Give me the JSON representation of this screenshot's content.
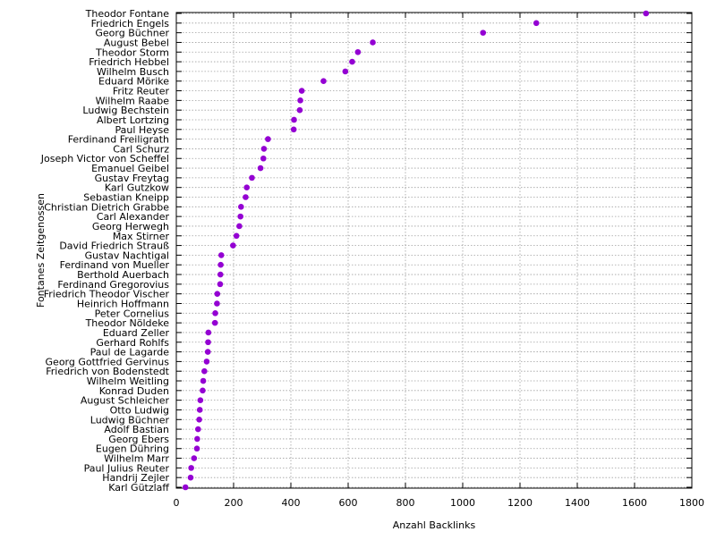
{
  "chart_data": {
    "type": "scatter",
    "title": "",
    "xlabel": "Anzahl Backlinks",
    "ylabel": "Fontanes Zeitgenossen",
    "xlim": [
      0,
      1800
    ],
    "x_ticks": [
      0,
      200,
      400,
      600,
      800,
      1000,
      1200,
      1400,
      1600,
      1800
    ],
    "grid": true,
    "legend": "none",
    "marker_color": "#9400d3",
    "points": [
      {
        "label": "Theodor Fontane",
        "x": 1640
      },
      {
        "label": "Friedrich Engels",
        "x": 1257
      },
      {
        "label": "Georg Büchner",
        "x": 1071
      },
      {
        "label": "August Bebel",
        "x": 686
      },
      {
        "label": "Theodor Storm",
        "x": 634
      },
      {
        "label": "Friedrich Hebbel",
        "x": 614
      },
      {
        "label": "Wilhelm Busch",
        "x": 590
      },
      {
        "label": "Eduard Mörike",
        "x": 514
      },
      {
        "label": "Fritz Reuter",
        "x": 438
      },
      {
        "label": "Wilhelm Raabe",
        "x": 433
      },
      {
        "label": "Ludwig Bechstein",
        "x": 431
      },
      {
        "label": "Albert Lortzing",
        "x": 411
      },
      {
        "label": "Paul Heyse",
        "x": 410
      },
      {
        "label": "Ferdinand Freiligrath",
        "x": 320
      },
      {
        "label": "Carl Schurz",
        "x": 306
      },
      {
        "label": "Joseph Victor von Scheffel",
        "x": 304
      },
      {
        "label": "Emanuel Geibel",
        "x": 294
      },
      {
        "label": "Gustav Freytag",
        "x": 264
      },
      {
        "label": "Karl Gutzkow",
        "x": 246
      },
      {
        "label": "Sebastian Kneipp",
        "x": 242
      },
      {
        "label": "Christian Dietrich Grabbe",
        "x": 226
      },
      {
        "label": "Carl Alexander",
        "x": 224
      },
      {
        "label": "Georg Herwegh",
        "x": 220
      },
      {
        "label": "Max Stirner",
        "x": 210
      },
      {
        "label": "David Friedrich Strauß",
        "x": 198
      },
      {
        "label": "Gustav Nachtigal",
        "x": 157
      },
      {
        "label": "Ferdinand von Mueller",
        "x": 155
      },
      {
        "label": "Berthold Auerbach",
        "x": 154
      },
      {
        "label": "Ferdinand Gregorovius",
        "x": 153
      },
      {
        "label": "Friedrich Theodor Vischer",
        "x": 143
      },
      {
        "label": "Heinrich Hoffmann",
        "x": 142
      },
      {
        "label": "Peter Cornelius",
        "x": 136
      },
      {
        "label": "Theodor Nöldeke",
        "x": 135
      },
      {
        "label": "Eduard Zeller",
        "x": 112
      },
      {
        "label": "Gerhard Rohlfs",
        "x": 111
      },
      {
        "label": "Paul de Lagarde",
        "x": 110
      },
      {
        "label": "Georg Gottfried Gervinus",
        "x": 106
      },
      {
        "label": "Friedrich von Bodenstedt",
        "x": 98
      },
      {
        "label": "Wilhelm Weitling",
        "x": 94
      },
      {
        "label": "Konrad Duden",
        "x": 92
      },
      {
        "label": "August Schleicher",
        "x": 84
      },
      {
        "label": "Otto Ludwig",
        "x": 82
      },
      {
        "label": "Ludwig Büchner",
        "x": 80
      },
      {
        "label": "Adolf Bastian",
        "x": 76
      },
      {
        "label": "Georg Ebers",
        "x": 73
      },
      {
        "label": "Eugen Dühring",
        "x": 72
      },
      {
        "label": "Wilhelm Marr",
        "x": 62
      },
      {
        "label": "Paul Julius Reuter",
        "x": 52
      },
      {
        "label": "Handrij Zejler",
        "x": 50
      },
      {
        "label": "Karl Gützlaff",
        "x": 32
      }
    ]
  }
}
